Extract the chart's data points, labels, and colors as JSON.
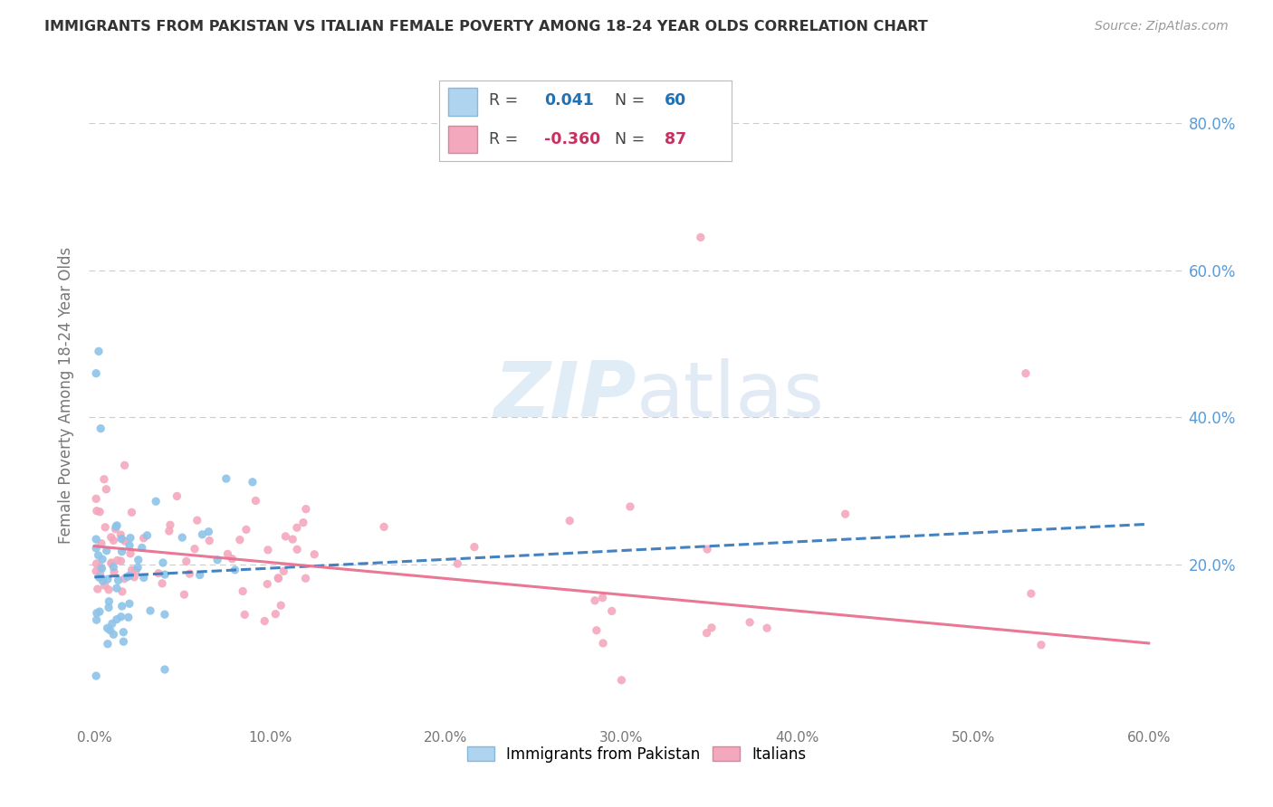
{
  "title": "IMMIGRANTS FROM PAKISTAN VS ITALIAN FEMALE POVERTY AMONG 18-24 YEAR OLDS CORRELATION CHART",
  "source": "Source: ZipAtlas.com",
  "ylabel": "Female Poverty Among 18-24 Year Olds",
  "xlim": [
    -0.003,
    0.62
  ],
  "ylim": [
    -0.02,
    0.88
  ],
  "yticks": [
    0.0,
    0.2,
    0.4,
    0.6,
    0.8
  ],
  "xticks": [
    0.0,
    0.1,
    0.2,
    0.3,
    0.4,
    0.5,
    0.6
  ],
  "xtick_labels": [
    "0.0%",
    "10.0%",
    "20.0%",
    "30.0%",
    "40.0%",
    "50.0%",
    "60.0%"
  ],
  "ytick_labels_right": [
    "",
    "20.0%",
    "40.0%",
    "60.0%",
    "80.0%"
  ],
  "pakistan_dot_color": "#8dc4e8",
  "italian_dot_color": "#f4a8be",
  "pakistan_line_color": "#3a7bbf",
  "italian_line_color": "#e87090",
  "legend_R1": "0.041",
  "legend_N1": "60",
  "legend_R2": "-0.360",
  "legend_N2": "87",
  "watermark_text": "ZIPatlas",
  "watermark_color": "#c8dff0",
  "background_color": "#ffffff",
  "grid_color": "#cccccc",
  "title_color": "#333333",
  "source_color": "#999999",
  "ylabel_color": "#777777",
  "tick_color": "#777777",
  "right_tick_color": "#5b9bd5"
}
